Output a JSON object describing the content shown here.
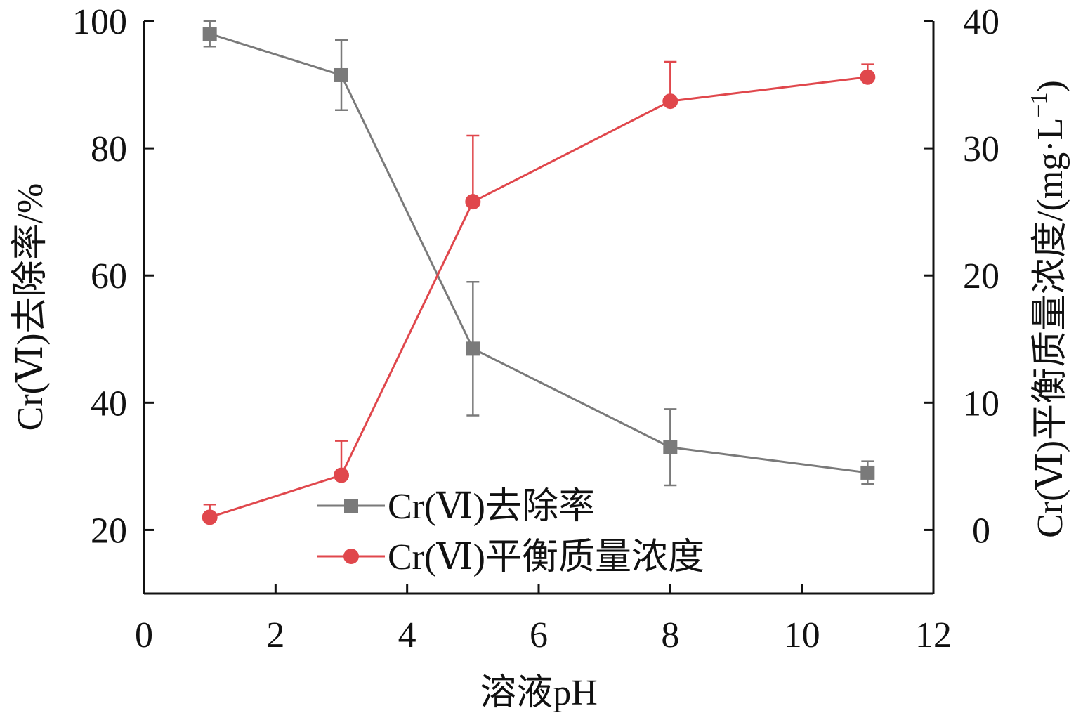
{
  "chart_data": {
    "type": "line",
    "xlabel": "溶液pH",
    "ylabel_left": "Cr(Ⅵ)去除率/%",
    "ylabel_right_main": "Cr(Ⅵ)平衡质量浓度/(mg·L",
    "ylabel_right_sup": "−1",
    "ylabel_right_close": ")",
    "xlim": [
      0,
      12
    ],
    "ylim_left": [
      10,
      100
    ],
    "ylim_right": [
      -5,
      40
    ],
    "x_ticks": [
      0,
      2,
      4,
      6,
      8,
      10,
      12
    ],
    "y_left_ticks": [
      20,
      40,
      60,
      80,
      100
    ],
    "y_right_ticks": [
      0,
      10,
      20,
      30,
      40
    ],
    "grid": false,
    "legend_position": "bottom-center",
    "series": [
      {
        "name": "Cr(Ⅵ)去除率",
        "axis": "left",
        "marker": "square",
        "color": "#7a7a7a",
        "x": [
          1,
          3,
          5,
          8,
          11
        ],
        "y": [
          98.0,
          91.5,
          48.5,
          33.0,
          29.0
        ],
        "err": [
          2.0,
          5.5,
          10.5,
          6.0,
          1.8
        ]
      },
      {
        "name": "Cr(Ⅵ)平衡质量浓度",
        "axis": "right",
        "marker": "circle",
        "color": "#e0474c",
        "x": [
          1,
          3,
          5,
          8,
          11
        ],
        "y": [
          1.0,
          4.3,
          25.8,
          33.7,
          35.6
        ],
        "err_up": [
          1.0,
          2.7,
          5.2,
          3.1,
          1.0
        ]
      }
    ]
  }
}
